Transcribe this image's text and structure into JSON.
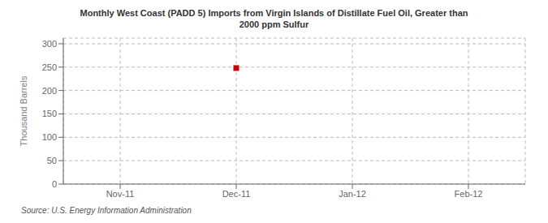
{
  "chart_data": {
    "type": "scatter",
    "title": "Monthly West Coast (PADD 5) Imports from Virgin Islands of Distillate Fuel Oil, Greater than\n2000 ppm Sulfur",
    "ylabel": "Thousand Barrels",
    "categories": [
      "Nov-11",
      "Dec-11",
      "Jan-12",
      "Feb-12"
    ],
    "values": [
      null,
      248,
      null,
      null
    ],
    "color": "#cc0000",
    "marker": "square",
    "line_style": "none",
    "ylim": [
      0,
      312
    ],
    "yticks": [
      0,
      50,
      100,
      150,
      200,
      250,
      300
    ],
    "grid": true,
    "annotations": [
      "Source: U.S. Energy Information Administration"
    ]
  }
}
